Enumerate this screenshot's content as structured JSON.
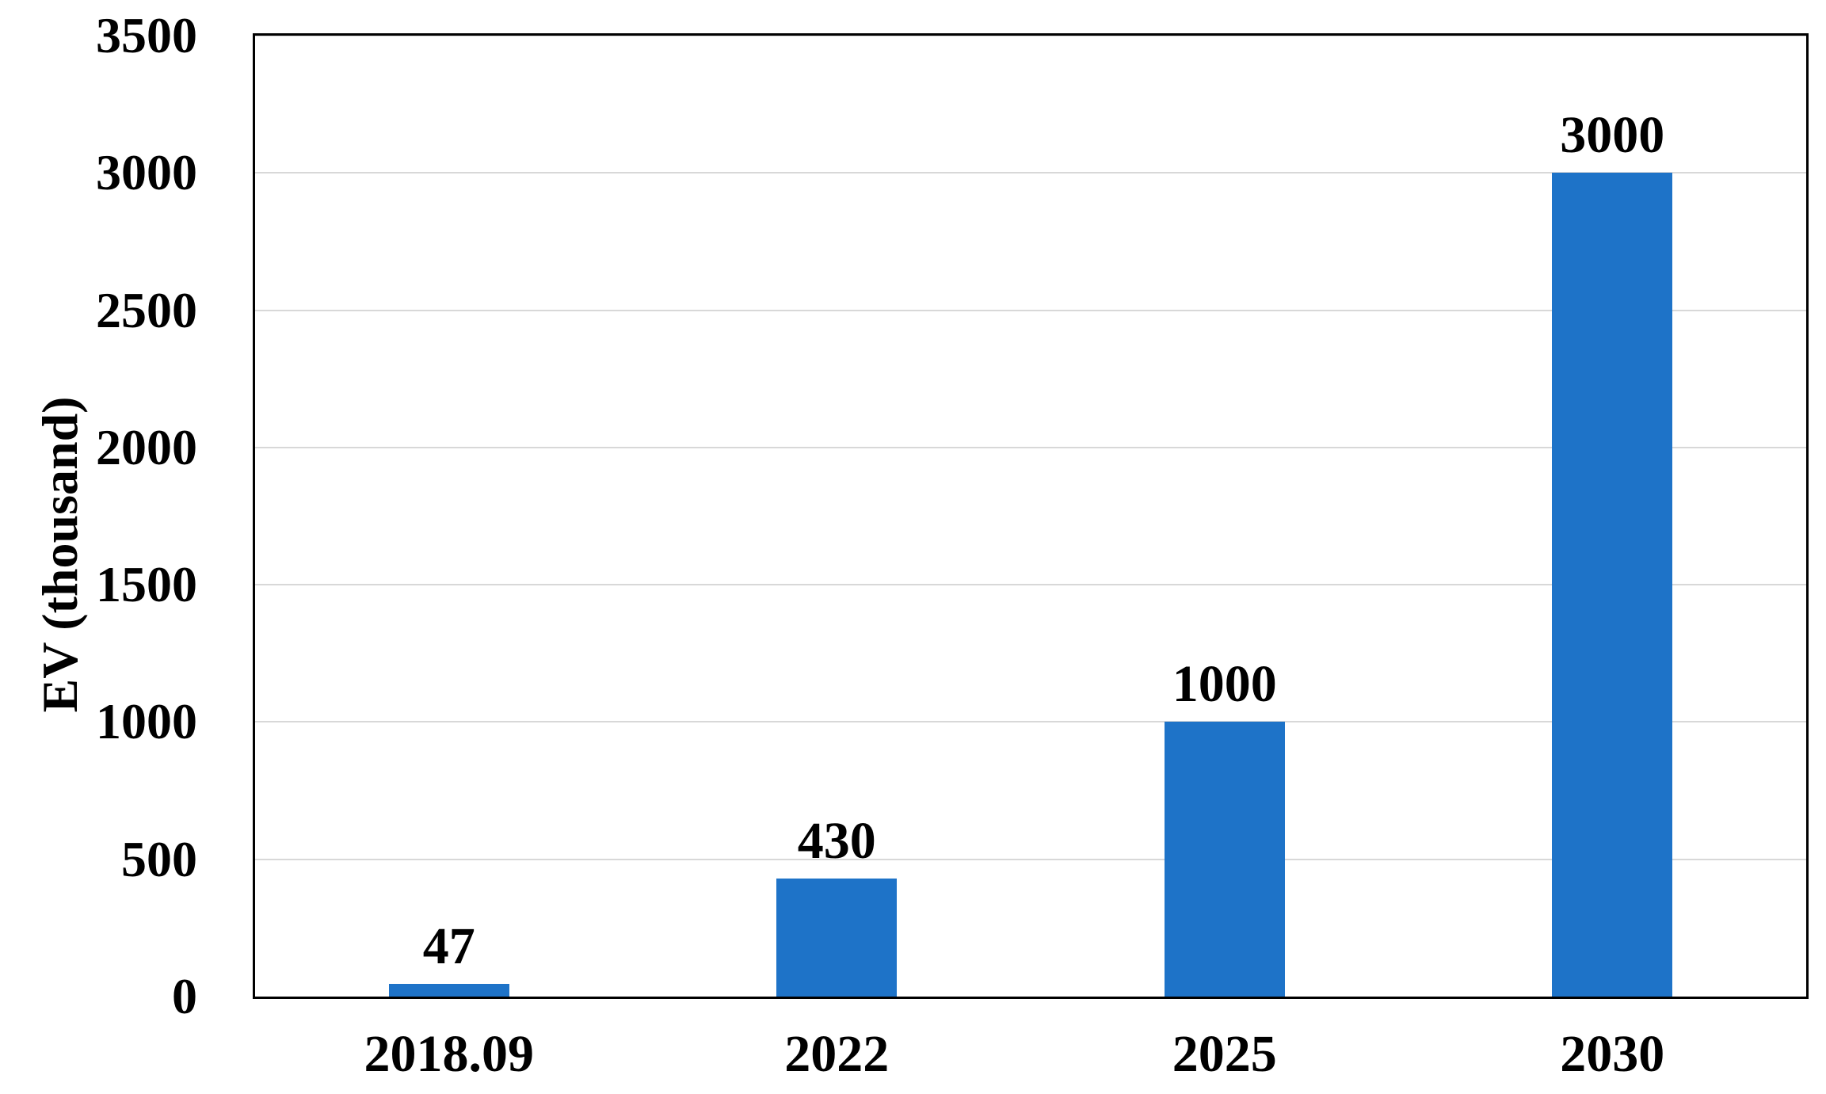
{
  "chart_data": {
    "type": "bar",
    "title": "",
    "categories": [
      "2018.09",
      "2022",
      "2025",
      "2030"
    ],
    "values": [
      47,
      430,
      1000,
      3000
    ],
    "value_labels": [
      "47",
      "430",
      "1000",
      "3000"
    ],
    "xlabel": "",
    "ylabel": "EV (thousand)",
    "ylim": [
      0,
      3500
    ],
    "yticks": [
      0,
      500,
      1000,
      1500,
      2000,
      2500,
      3000,
      3500
    ],
    "grid": "horizontal",
    "legend": "none",
    "colors": {
      "bar": "#1E73C8",
      "gridline": "#D8D8D8",
      "axis_border": "#000000",
      "text": "#000000",
      "background": "#FFFFFF"
    }
  }
}
